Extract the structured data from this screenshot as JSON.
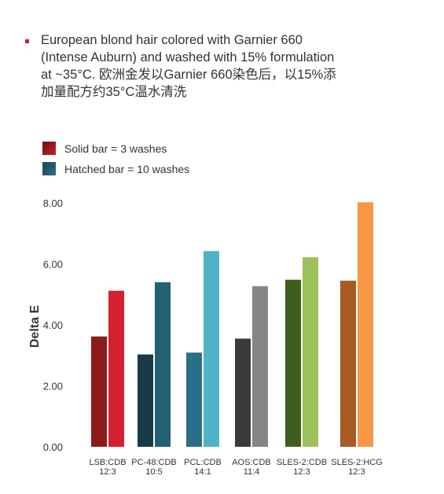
{
  "header": {
    "lines": [
      "European blond hair colored with Garnier 660",
      "(Intense Auburn) and washed with 15% formulation",
      "at ~35°C. 欧洲金发以Garnier 660染色后，以15%添",
      "加量配方约35°C温水清洗"
    ]
  },
  "legend": {
    "items": [
      {
        "label": "Solid bar = 3 washes",
        "color": "#8b1a1a"
      },
      {
        "label": "Hatched bar = 10 washes",
        "color": "#1f5566"
      }
    ]
  },
  "chart_data": {
    "type": "bar",
    "ylabel": "Delta E",
    "xlabel": "",
    "ylim": [
      0,
      8
    ],
    "yticks": [
      "0.00",
      "2.00",
      "4.00",
      "6.00",
      "8.00"
    ],
    "categories": [
      {
        "line1": "LSB:CDB",
        "line2": "12:3"
      },
      {
        "line1": "PC-48:CDB",
        "line2": "10:5"
      },
      {
        "line1": "PCL:CDB",
        "line2": "14:1"
      },
      {
        "line1": "AOS:CDB",
        "line2": "11:4"
      },
      {
        "line1": "SLES-2:CDB",
        "line2": "12:3"
      },
      {
        "line1": "SLES-2:HCG",
        "line2": "12:3"
      }
    ],
    "series": [
      {
        "values": [
          3.62,
          3.03,
          3.09,
          3.55,
          5.48,
          5.45
        ],
        "colors": [
          "#8b1a1a",
          "#173c47",
          "#2a6f88",
          "#3a3a3a",
          "#3e5e1e",
          "#a95a22"
        ]
      },
      {
        "values": [
          5.12,
          5.4,
          6.42,
          5.27,
          6.22,
          8.02
        ],
        "colors": [
          "#d42030",
          "#226074",
          "#4fb3c8",
          "#858585",
          "#9cc15a",
          "#f79646"
        ]
      }
    ]
  }
}
